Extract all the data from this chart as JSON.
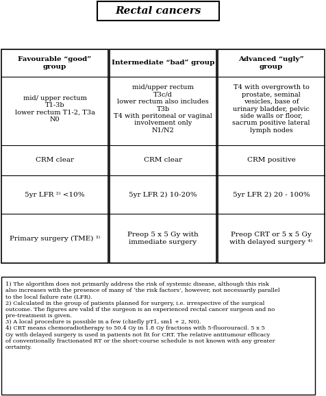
{
  "title": "Rectal cancers",
  "col1_header": "Favourable “good”\ngroup",
  "col2_header": "Intermediate “bad” group",
  "col3_header": "Advanced “ugly”\ngroup",
  "col1_row1": "mid/ upper rectum\nT1-3b\nlower rectum T1-2, T3a\nN0",
  "col2_row1": "mid/upper rectum\nT3c/d\nlower rectum also includes\nT3b\nT4 with peritoneal or vaginal\ninvolvement only\nN1/N2",
  "col3_row1": "T4 with overgrowth to\nprostate, seminal\nvesicles, base of\nurinary bladder, pelvic\nside walls or floor,\nsacrum positive lateral\nlymph nodes",
  "col1_row2": "CRM clear",
  "col2_row2": "CRM clear",
  "col3_row2": "CRM positive",
  "col1_row3": "5yr LFR ²⁾ <10%",
  "col2_row3": "5yr LFR 2) 10-20%",
  "col3_row3": "5yr LFR 2) 20 - 100%",
  "col1_row4": "Primary surgery (TME) ³⁾",
  "col2_row4": "Preop 5 x 5 Gy with\nimmediate surgery",
  "col3_row4": "Preop CRT or 5 x 5 Gy\nwith delayed surgery ⁴⁾",
  "footnote": "1) The algorithm does not primarily address the risk of systemic disease, although this risk\nalso increases with the presence of many of ‘the risk factors’, however, not necessarily parallel\nto the local failure rate (LFR).\n2) Calculated in the group of patients planned for surgery, i.e. irrespective of the surgical\noutcome. The figures are valid if the surgeon is an experienced rectal cancer surgeon and no\npre-treatment is given.\n3) A local procedure is possible in a few (chiefly pT1, sm1 + 2, N0).\n4) CRT means chemoradiotherapy to 50.4 Gy in 1.8 Gy fractions with 5-fluorouracil. 5 x 5\nGy with delayed surgery is used in patients not fit for CRT. The relative antitumour efficacy\nof conventionally fractionated RT or the short-course schedule is not known with any greater\ncertainty.",
  "bg_color": "#ffffff",
  "box_edge_color": "#000000",
  "text_color": "#000000",
  "fig_w": 4.74,
  "fig_h": 5.93
}
